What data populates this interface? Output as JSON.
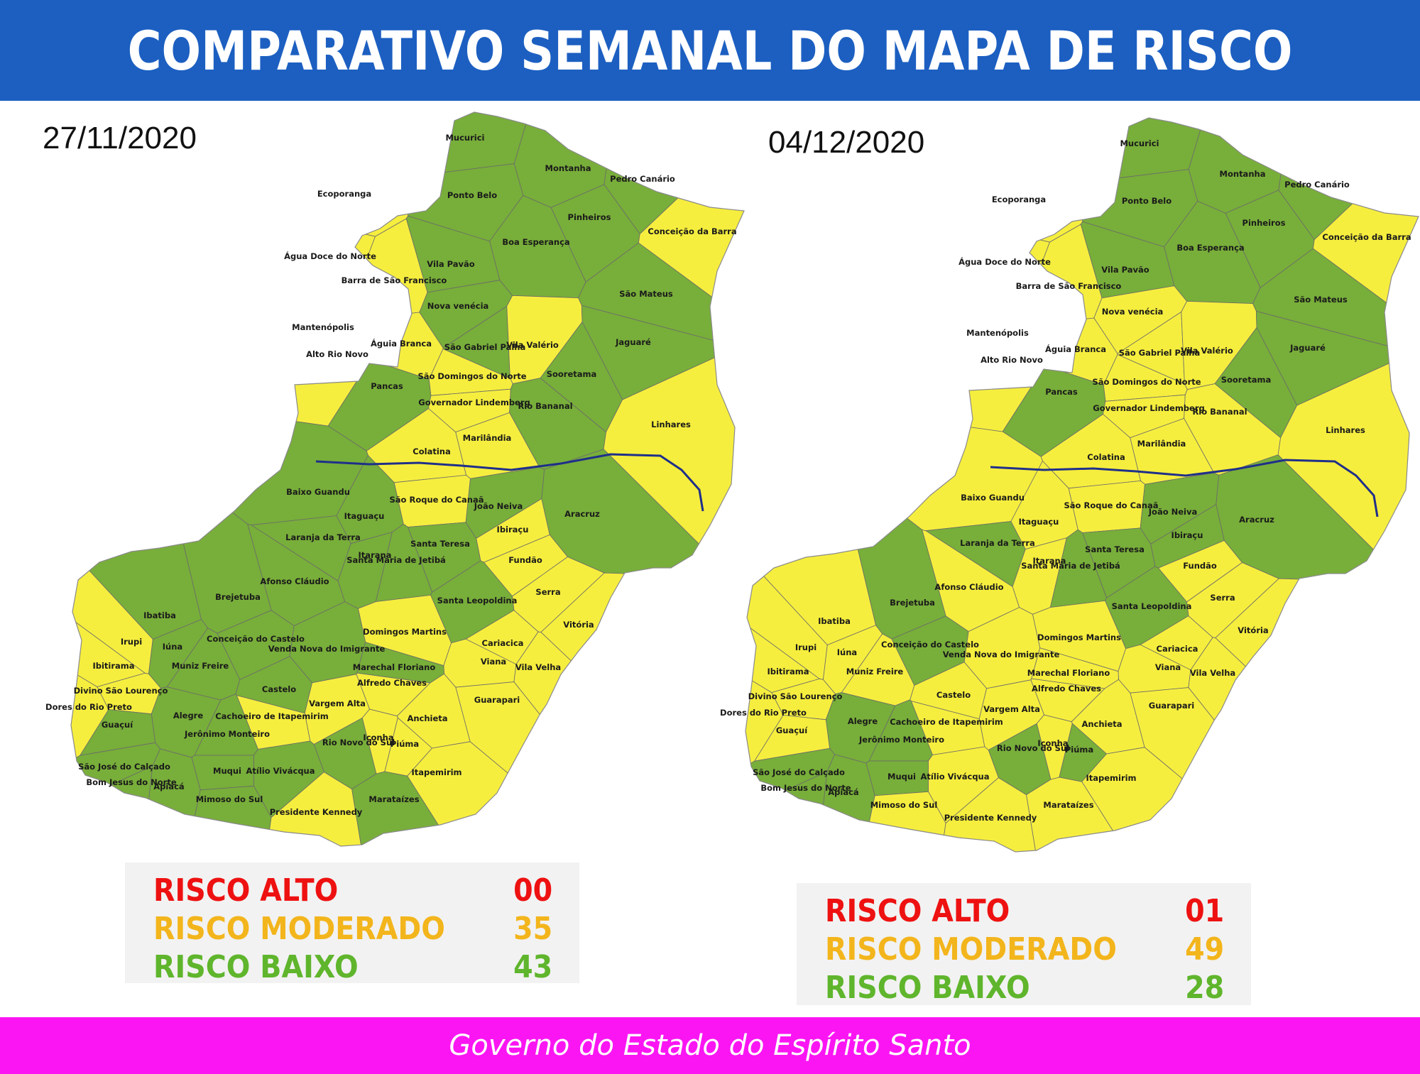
{
  "header": {
    "title": "COMPARATIVO SEMANAL DO MAPA DE RISCO"
  },
  "footer": {
    "text": "Governo do Estado do Espírito Santo"
  },
  "colors": {
    "header_bg": "#1c5fc1",
    "footer_bg": "#fb15f3",
    "risco_alto": "#ee1111",
    "risco_moderado": "#f6ee3e",
    "risco_moderado_text": "#f3b51c",
    "risco_baixo": "#78ae3a",
    "risco_baixo_text": "#5fb52c",
    "river": "#1f2f8a"
  },
  "maps": [
    {
      "date": "27/11/2020",
      "legend": [
        {
          "label": "RISCO ALTO",
          "value": "00",
          "level": "alto"
        },
        {
          "label": "RISCO MODERADO",
          "value": "35",
          "level": "moderado"
        },
        {
          "label": "RISCO BAIXO",
          "value": "43",
          "level": "baixo"
        }
      ]
    },
    {
      "date": "04/12/2020",
      "legend": [
        {
          "label": "RISCO ALTO",
          "value": "01",
          "level": "alto"
        },
        {
          "label": "RISCO MODERADO",
          "value": "49",
          "level": "moderado"
        },
        {
          "label": "RISCO BAIXO",
          "value": "28",
          "level": "baixo"
        }
      ]
    }
  ],
  "municipalities": [
    {
      "name": "Mucurici",
      "risk": [
        "baixo",
        "baixo"
      ]
    },
    {
      "name": "Montanha",
      "risk": [
        "baixo",
        "baixo"
      ]
    },
    {
      "name": "Pedro Canário",
      "risk": [
        "baixo",
        "baixo"
      ]
    },
    {
      "name": "Ecoporanga",
      "risk": [
        "moderado",
        "moderado"
      ]
    },
    {
      "name": "Ponto Belo",
      "risk": [
        "baixo",
        "baixo"
      ]
    },
    {
      "name": "Pinheiros",
      "risk": [
        "baixo",
        "baixo"
      ]
    },
    {
      "name": "Conceição da Barra",
      "risk": [
        "moderado",
        "moderado"
      ]
    },
    {
      "name": "Água Doce do Norte",
      "risk": [
        "moderado",
        "moderado"
      ]
    },
    {
      "name": "Boa Esperança",
      "risk": [
        "baixo",
        "baixo"
      ]
    },
    {
      "name": "Vila Pavão",
      "risk": [
        "baixo",
        "baixo"
      ]
    },
    {
      "name": "Barra de São Francisco",
      "risk": [
        "moderado",
        "moderado"
      ]
    },
    {
      "name": "São Mateus",
      "risk": [
        "baixo",
        "baixo"
      ]
    },
    {
      "name": "Nova venécia",
      "risk": [
        "baixo",
        "moderado"
      ]
    },
    {
      "name": "Mantenópolis",
      "risk": [
        "moderado",
        "alto"
      ]
    },
    {
      "name": "Águia Branca",
      "risk": [
        "moderado",
        "moderado"
      ]
    },
    {
      "name": "São Gabriel Palha",
      "risk": [
        "baixo",
        "moderado"
      ]
    },
    {
      "name": "Vila Valério",
      "risk": [
        "moderado",
        "moderado"
      ]
    },
    {
      "name": "Jaguaré",
      "risk": [
        "baixo",
        "baixo"
      ]
    },
    {
      "name": "Alto Rio Novo",
      "risk": [
        "moderado",
        "moderado"
      ]
    },
    {
      "name": "Sooretama",
      "risk": [
        "baixo",
        "baixo"
      ]
    },
    {
      "name": "São Domingos do Norte",
      "risk": [
        "moderado",
        "moderado"
      ]
    },
    {
      "name": "Pancas",
      "risk": [
        "baixo",
        "baixo"
      ]
    },
    {
      "name": "Governador Lindemberg",
      "risk": [
        "moderado",
        "moderado"
      ]
    },
    {
      "name": "Rio Bananal",
      "risk": [
        "baixo",
        "moderado"
      ]
    },
    {
      "name": "Linhares",
      "risk": [
        "moderado",
        "moderado"
      ]
    },
    {
      "name": "Marilândia",
      "risk": [
        "moderado",
        "moderado"
      ]
    },
    {
      "name": "Colatina",
      "risk": [
        "moderado",
        "moderado"
      ]
    },
    {
      "name": "Baixo Guandu",
      "risk": [
        "baixo",
        "moderado"
      ]
    },
    {
      "name": "São Roque do Canaã",
      "risk": [
        "moderado",
        "moderado"
      ]
    },
    {
      "name": "João Neiva",
      "risk": [
        "baixo",
        "baixo"
      ]
    },
    {
      "name": "Aracruz",
      "risk": [
        "baixo",
        "baixo"
      ]
    },
    {
      "name": "Itaguaçu",
      "risk": [
        "baixo",
        "moderado"
      ]
    },
    {
      "name": "Ibiraçu",
      "risk": [
        "moderado",
        "baixo"
      ]
    },
    {
      "name": "Laranja da Terra",
      "risk": [
        "baixo",
        "baixo"
      ]
    },
    {
      "name": "Santa Teresa",
      "risk": [
        "baixo",
        "baixo"
      ]
    },
    {
      "name": "Itarana",
      "risk": [
        "baixo",
        "moderado"
      ]
    },
    {
      "name": "Fundão",
      "risk": [
        "moderado",
        "moderado"
      ]
    },
    {
      "name": "Afonso Cláudio",
      "risk": [
        "baixo",
        "moderado"
      ]
    },
    {
      "name": "Santa Maria de Jetibá",
      "risk": [
        "baixo",
        "baixo"
      ]
    },
    {
      "name": "Serra",
      "risk": [
        "moderado",
        "moderado"
      ]
    },
    {
      "name": "Santa Leopoldina",
      "risk": [
        "baixo",
        "baixo"
      ]
    },
    {
      "name": "Brejetuba",
      "risk": [
        "baixo",
        "baixo"
      ]
    },
    {
      "name": "Ibatiba",
      "risk": [
        "baixo",
        "moderado"
      ]
    },
    {
      "name": "Domingos Martins",
      "risk": [
        "moderado",
        "moderado"
      ]
    },
    {
      "name": "Vitória",
      "risk": [
        "moderado",
        "moderado"
      ]
    },
    {
      "name": "Cariacica",
      "risk": [
        "moderado",
        "moderado"
      ]
    },
    {
      "name": "Conceição do Castelo",
      "risk": [
        "baixo",
        "baixo"
      ]
    },
    {
      "name": "Venda Nova do Imigrante",
      "risk": [
        "baixo",
        "moderado"
      ]
    },
    {
      "name": "Irupi",
      "risk": [
        "moderado",
        "moderado"
      ]
    },
    {
      "name": "Iúna",
      "risk": [
        "baixo",
        "moderado"
      ]
    },
    {
      "name": "Viana",
      "risk": [
        "moderado",
        "moderado"
      ]
    },
    {
      "name": "Marechal Floriano",
      "risk": [
        "baixo",
        "moderado"
      ]
    },
    {
      "name": "Muniz Freire",
      "risk": [
        "baixo",
        "moderado"
      ]
    },
    {
      "name": "Vila Velha",
      "risk": [
        "moderado",
        "moderado"
      ]
    },
    {
      "name": "Ibitirama",
      "risk": [
        "moderado",
        "moderado"
      ]
    },
    {
      "name": "Alfredo Chaves",
      "risk": [
        "moderado",
        "moderado"
      ]
    },
    {
      "name": "Divino São Lourenço",
      "risk": [
        "moderado",
        "moderado"
      ]
    },
    {
      "name": "Castelo",
      "risk": [
        "baixo",
        "moderado"
      ]
    },
    {
      "name": "Vargem Alta",
      "risk": [
        "moderado",
        "moderado"
      ]
    },
    {
      "name": "Guarapari",
      "risk": [
        "moderado",
        "moderado"
      ]
    },
    {
      "name": "Dores do Rio Preto",
      "risk": [
        "moderado",
        "moderado"
      ]
    },
    {
      "name": "Alegre",
      "risk": [
        "baixo",
        "baixo"
      ]
    },
    {
      "name": "Cachoeiro de Itapemirim",
      "risk": [
        "moderado",
        "moderado"
      ]
    },
    {
      "name": "Anchieta",
      "risk": [
        "moderado",
        "moderado"
      ]
    },
    {
      "name": "Guaçuí",
      "risk": [
        "baixo",
        "moderado"
      ]
    },
    {
      "name": "Jerônimo Monteiro",
      "risk": [
        "baixo",
        "baixo"
      ]
    },
    {
      "name": "Iconha",
      "risk": [
        "moderado",
        "moderado"
      ]
    },
    {
      "name": "Rio Novo do Sul",
      "risk": [
        "baixo",
        "baixo"
      ]
    },
    {
      "name": "Piúma",
      "risk": [
        "moderado",
        "baixo"
      ]
    },
    {
      "name": "São José do Calçado",
      "risk": [
        "baixo",
        "baixo"
      ]
    },
    {
      "name": "Muqui",
      "risk": [
        "baixo",
        "baixo"
      ]
    },
    {
      "name": "Atílio Vivácqua",
      "risk": [
        "baixo",
        "moderado"
      ]
    },
    {
      "name": "Itapemirim",
      "risk": [
        "moderado",
        "moderado"
      ]
    },
    {
      "name": "Bom Jesus do Norte",
      "risk": [
        "baixo",
        "baixo"
      ]
    },
    {
      "name": "Apiacá",
      "risk": [
        "baixo",
        "baixo"
      ]
    },
    {
      "name": "Mimoso do Sul",
      "risk": [
        "baixo",
        "moderado"
      ]
    },
    {
      "name": "Marataízes",
      "risk": [
        "baixo",
        "moderado"
      ]
    },
    {
      "name": "Presidente Kennedy",
      "risk": [
        "moderado",
        "moderado"
      ]
    }
  ]
}
